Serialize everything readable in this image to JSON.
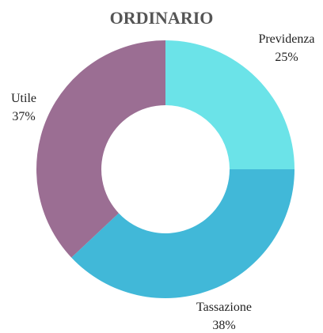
{
  "chart_data": {
    "type": "donut",
    "title": "ORDINARIO",
    "categories": [
      "Previdenza",
      "Tassazione",
      "Utile"
    ],
    "values": [
      25,
      38,
      37
    ],
    "value_labels": [
      "25%",
      "38%",
      "37%"
    ],
    "colors": [
      "#6be3e8",
      "#41b8d8",
      "#9b6e93"
    ]
  }
}
